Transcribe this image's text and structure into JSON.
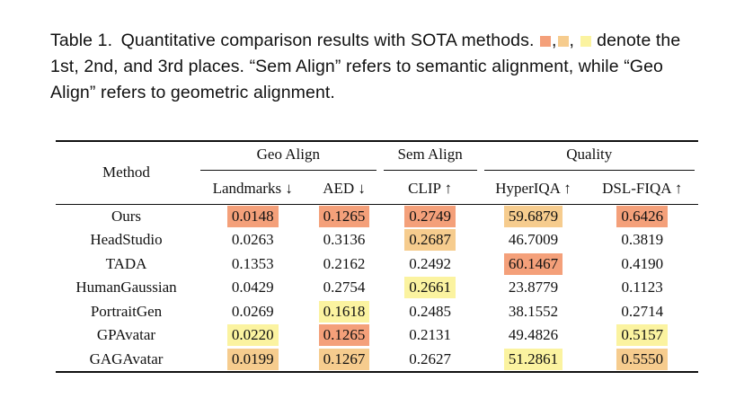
{
  "caption": {
    "label": "Table 1.",
    "text_before_swatches": "Quantitative comparison results with SOTA methods.",
    "swatch_sep_1": ",",
    "swatch_sep_2": ",",
    "text_after_swatches": "denote the 1st, 2nd, and 3rd places. “Sem Align” refers to semantic alignment, while “Geo Align” refers to geometric alignment.",
    "swatch_colors": [
      "#f4a07a",
      "#f6cc8e",
      "#fbf3a0"
    ]
  },
  "table": {
    "method_header": "Method",
    "groups": [
      "Geo Align",
      "Sem Align",
      "Quality"
    ],
    "columns": [
      "Landmarks ↓",
      "AED ↓",
      "CLIP ↑",
      "HyperIQA ↑",
      "DSL-FIQA ↑"
    ],
    "rows": [
      {
        "method": "Ours",
        "values": [
          "0.0148",
          "0.1265",
          "0.2749",
          "59.6879",
          "0.6426"
        ],
        "ranks": [
          1,
          1,
          1,
          2,
          1
        ]
      },
      {
        "method": "HeadStudio",
        "values": [
          "0.0263",
          "0.3136",
          "0.2687",
          "46.7009",
          "0.3819"
        ],
        "ranks": [
          0,
          0,
          2,
          0,
          0
        ]
      },
      {
        "method": "TADA",
        "values": [
          "0.1353",
          "0.2162",
          "0.2492",
          "60.1467",
          "0.4190"
        ],
        "ranks": [
          0,
          0,
          0,
          1,
          0
        ]
      },
      {
        "method": "HumanGaussian",
        "values": [
          "0.0429",
          "0.2754",
          "0.2661",
          "23.8779",
          "0.1123"
        ],
        "ranks": [
          0,
          0,
          3,
          0,
          0
        ]
      },
      {
        "method": "PortraitGen",
        "values": [
          "0.0269",
          "0.1618",
          "0.2485",
          "38.1552",
          "0.2714"
        ],
        "ranks": [
          0,
          3,
          0,
          0,
          0
        ]
      },
      {
        "method": "GPAvatar",
        "values": [
          "0.0220",
          "0.1265",
          "0.2131",
          "49.4826",
          "0.5157"
        ],
        "ranks": [
          3,
          1,
          0,
          0,
          3
        ]
      },
      {
        "method": "GAGAvatar",
        "values": [
          "0.0199",
          "0.1267",
          "0.2627",
          "51.2861",
          "0.5550"
        ],
        "ranks": [
          2,
          2,
          0,
          3,
          2
        ]
      }
    ]
  }
}
